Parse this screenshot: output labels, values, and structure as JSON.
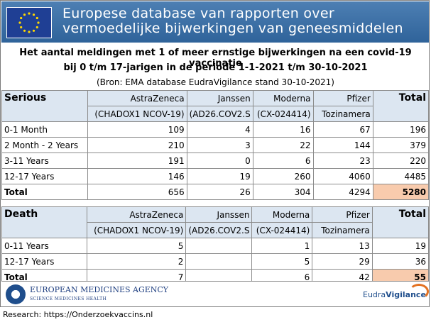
{
  "banner": {
    "line1": "Europese database van rapporten over",
    "line2": "vermoedelijke bijwerkingen van geneesmiddelen"
  },
  "title": {
    "line1": "Het aantal meldingen met 1 of meer ernstige bijwerkingen na een covid-19 vaccinatie",
    "line2": "bij 0 t/m 17-jarigen in de periode 1-1-2021 t/m 30-10-2021",
    "source": "(Bron: EMA database EudraVigilance stand 30-10-2021)"
  },
  "columns": {
    "astrazeneca": "AstraZeneca",
    "astrazeneca_code": "(CHADOX1 NCOV-19)",
    "janssen": "Janssen",
    "janssen_code": "(AD26.COV2.S",
    "moderna": "Moderna",
    "moderna_code": "(CX-024414)",
    "pfizer": "Pfizer",
    "pfizer_code": "Tozinamera",
    "total": "Total"
  },
  "serious": {
    "label": "Serious",
    "rows": [
      {
        "label": "0-1 Month",
        "az": "109",
        "jj": "4",
        "mo": "16",
        "pf": "67",
        "total": "196"
      },
      {
        "label": "2 Month - 2 Years",
        "az": "210",
        "jj": "3",
        "mo": "22",
        "pf": "144",
        "total": "379"
      },
      {
        "label": "3-11 Years",
        "az": "191",
        "jj": "0",
        "mo": "6",
        "pf": "23",
        "total": "220"
      },
      {
        "label": "12-17 Years",
        "az": "146",
        "jj": "19",
        "mo": "260",
        "pf": "4060",
        "total": "4485"
      }
    ],
    "total": {
      "label": "Total",
      "az": "656",
      "jj": "26",
      "mo": "304",
      "pf": "4294",
      "total": "5280"
    }
  },
  "death": {
    "label": "Death",
    "rows": [
      {
        "label": "0-11 Years",
        "az": "5",
        "jj": "",
        "mo": "1",
        "pf": "13",
        "total": "19"
      },
      {
        "label": "12-17 Years",
        "az": "2",
        "jj": "",
        "mo": "5",
        "pf": "29",
        "total": "36"
      }
    ],
    "total": {
      "label": "Total",
      "az": "7",
      "jj": "",
      "mo": "6",
      "pf": "42",
      "total": "55"
    }
  },
  "footer": {
    "ema_name": "EUROPEAN MEDICINES AGENCY",
    "ema_tagline": "SCIENCE MEDICINES HEALTH",
    "ev_part1": "Eudra",
    "ev_part2": "Vigilance",
    "research": "Research: https://Onderzoekvaccins.nl"
  },
  "colors": {
    "banner": "#3a6ea5",
    "header_fill": "#dce6f1",
    "grand_total_fill": "#f8cbad",
    "eu_flag": "#1f3f94",
    "star": "#ffd700"
  }
}
